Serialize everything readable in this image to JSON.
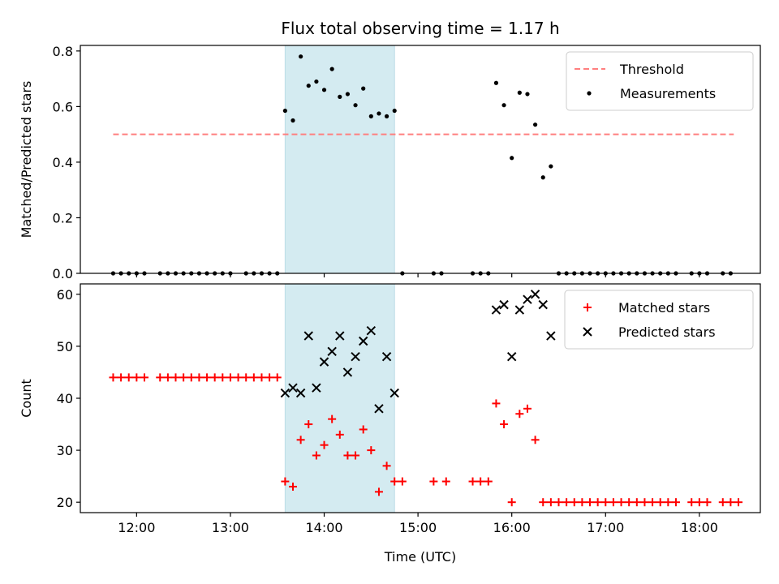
{
  "figure": {
    "title": "Flux total observing time = 1.17 h",
    "xlabel": "Time (UTC)"
  },
  "chart_data": [
    {
      "type": "scatter",
      "ylabel": "Matched/Predicted stars",
      "xlim": [
        "11:24",
        "18:39"
      ],
      "ylim": [
        0,
        0.82
      ],
      "y_ticks": [
        0.0,
        0.2,
        0.4,
        0.6,
        0.8
      ],
      "y_tick_labels": [
        "0.0",
        "0.2",
        "0.4",
        "0.6",
        "0.8"
      ],
      "legend_position": "top-right",
      "shaded_span": [
        "13:35",
        "14:45"
      ],
      "shade_color": "#d4ebf1",
      "threshold": {
        "name": "Threshold",
        "y": 0.5,
        "x_range": [
          "11:45",
          "18:22"
        ],
        "style": "dashed",
        "color": "#ff7f7f"
      },
      "series": [
        {
          "name": "Measurements",
          "marker": "dot",
          "color": "#000000",
          "points": [
            [
              "11:45",
              0
            ],
            [
              "11:50",
              0
            ],
            [
              "11:55",
              0
            ],
            [
              "12:00",
              0
            ],
            [
              "12:05",
              0
            ],
            [
              "12:15",
              0
            ],
            [
              "12:20",
              0
            ],
            [
              "12:25",
              0
            ],
            [
              "12:30",
              0
            ],
            [
              "12:35",
              0
            ],
            [
              "12:40",
              0
            ],
            [
              "12:45",
              0
            ],
            [
              "12:50",
              0
            ],
            [
              "12:55",
              0
            ],
            [
              "13:00",
              0
            ],
            [
              "13:10",
              0
            ],
            [
              "13:15",
              0
            ],
            [
              "13:20",
              0
            ],
            [
              "13:25",
              0
            ],
            [
              "13:30",
              0
            ],
            [
              "13:35",
              0.585
            ],
            [
              "13:40",
              0.55
            ],
            [
              "13:45",
              0.78
            ],
            [
              "13:50",
              0.675
            ],
            [
              "13:55",
              0.69
            ],
            [
              "14:00",
              0.66
            ],
            [
              "14:05",
              0.735
            ],
            [
              "14:10",
              0.635
            ],
            [
              "14:15",
              0.645
            ],
            [
              "14:20",
              0.605
            ],
            [
              "14:25",
              0.665
            ],
            [
              "14:30",
              0.565
            ],
            [
              "14:35",
              0.575
            ],
            [
              "14:40",
              0.565
            ],
            [
              "14:45",
              0.585
            ],
            [
              "14:50",
              0
            ],
            [
              "15:10",
              0
            ],
            [
              "15:15",
              0
            ],
            [
              "15:35",
              0
            ],
            [
              "15:40",
              0
            ],
            [
              "15:45",
              0
            ],
            [
              "15:50",
              0.685
            ],
            [
              "15:55",
              0.605
            ],
            [
              "16:00",
              0.415
            ],
            [
              "16:05",
              0.65
            ],
            [
              "16:10",
              0.645
            ],
            [
              "16:15",
              0.535
            ],
            [
              "16:20",
              0.345
            ],
            [
              "16:25",
              0.385
            ],
            [
              "16:30",
              0
            ],
            [
              "16:35",
              0
            ],
            [
              "16:40",
              0
            ],
            [
              "16:45",
              0
            ],
            [
              "16:50",
              0
            ],
            [
              "16:55",
              0
            ],
            [
              "17:00",
              0
            ],
            [
              "17:05",
              0
            ],
            [
              "17:10",
              0
            ],
            [
              "17:15",
              0
            ],
            [
              "17:20",
              0
            ],
            [
              "17:25",
              0
            ],
            [
              "17:30",
              0
            ],
            [
              "17:35",
              0
            ],
            [
              "17:40",
              0
            ],
            [
              "17:45",
              0
            ],
            [
              "17:55",
              0
            ],
            [
              "18:00",
              0
            ],
            [
              "18:05",
              0
            ],
            [
              "18:15",
              0
            ],
            [
              "18:20",
              0
            ]
          ]
        }
      ]
    },
    {
      "type": "scatter",
      "ylabel": "Count",
      "xlim": [
        "11:24",
        "18:39"
      ],
      "ylim": [
        18,
        62
      ],
      "y_ticks": [
        20,
        30,
        40,
        50,
        60
      ],
      "y_tick_labels": [
        "20",
        "30",
        "40",
        "50",
        "60"
      ],
      "x_ticks": [
        "12:00",
        "13:00",
        "14:00",
        "15:00",
        "16:00",
        "17:00",
        "18:00"
      ],
      "x_tick_labels": [
        "12:00",
        "13:00",
        "14:00",
        "15:00",
        "16:00",
        "17:00",
        "18:00"
      ],
      "legend_position": "top-right",
      "shaded_span": [
        "13:35",
        "14:45"
      ],
      "shade_color": "#d4ebf1",
      "series": [
        {
          "name": "Matched stars",
          "marker": "plus",
          "color": "#ff0000",
          "points": [
            [
              "11:45",
              44
            ],
            [
              "11:50",
              44
            ],
            [
              "11:55",
              44
            ],
            [
              "12:00",
              44
            ],
            [
              "12:05",
              44
            ],
            [
              "12:15",
              44
            ],
            [
              "12:20",
              44
            ],
            [
              "12:25",
              44
            ],
            [
              "12:30",
              44
            ],
            [
              "12:35",
              44
            ],
            [
              "12:40",
              44
            ],
            [
              "12:45",
              44
            ],
            [
              "12:50",
              44
            ],
            [
              "12:55",
              44
            ],
            [
              "13:00",
              44
            ],
            [
              "13:05",
              44
            ],
            [
              "13:10",
              44
            ],
            [
              "13:15",
              44
            ],
            [
              "13:20",
              44
            ],
            [
              "13:25",
              44
            ],
            [
              "13:30",
              44
            ],
            [
              "13:35",
              24
            ],
            [
              "13:40",
              23
            ],
            [
              "13:45",
              32
            ],
            [
              "13:50",
              35
            ],
            [
              "13:55",
              29
            ],
            [
              "14:00",
              31
            ],
            [
              "14:05",
              36
            ],
            [
              "14:10",
              33
            ],
            [
              "14:15",
              29
            ],
            [
              "14:20",
              29
            ],
            [
              "14:25",
              34
            ],
            [
              "14:30",
              30
            ],
            [
              "14:35",
              22
            ],
            [
              "14:40",
              27
            ],
            [
              "14:45",
              24
            ],
            [
              "14:50",
              24
            ],
            [
              "15:10",
              24
            ],
            [
              "15:18",
              24
            ],
            [
              "15:35",
              24
            ],
            [
              "15:40",
              24
            ],
            [
              "15:45",
              24
            ],
            [
              "15:50",
              39
            ],
            [
              "15:55",
              35
            ],
            [
              "16:00",
              20
            ],
            [
              "16:05",
              37
            ],
            [
              "16:10",
              38
            ],
            [
              "16:15",
              32
            ],
            [
              "16:20",
              20
            ],
            [
              "16:25",
              20
            ],
            [
              "16:30",
              20
            ],
            [
              "16:35",
              20
            ],
            [
              "16:40",
              20
            ],
            [
              "16:45",
              20
            ],
            [
              "16:50",
              20
            ],
            [
              "16:55",
              20
            ],
            [
              "17:00",
              20
            ],
            [
              "17:05",
              20
            ],
            [
              "17:10",
              20
            ],
            [
              "17:15",
              20
            ],
            [
              "17:20",
              20
            ],
            [
              "17:25",
              20
            ],
            [
              "17:30",
              20
            ],
            [
              "17:35",
              20
            ],
            [
              "17:40",
              20
            ],
            [
              "17:45",
              20
            ],
            [
              "17:55",
              20
            ],
            [
              "18:00",
              20
            ],
            [
              "18:05",
              20
            ],
            [
              "18:15",
              20
            ],
            [
              "18:20",
              20
            ],
            [
              "18:25",
              20
            ]
          ]
        },
        {
          "name": "Predicted stars",
          "marker": "x",
          "color": "#000000",
          "points": [
            [
              "13:35",
              41
            ],
            [
              "13:40",
              42
            ],
            [
              "13:45",
              41
            ],
            [
              "13:50",
              52
            ],
            [
              "13:55",
              42
            ],
            [
              "14:00",
              47
            ],
            [
              "14:05",
              49
            ],
            [
              "14:10",
              52
            ],
            [
              "14:15",
              45
            ],
            [
              "14:20",
              48
            ],
            [
              "14:25",
              51
            ],
            [
              "14:30",
              53
            ],
            [
              "14:35",
              38
            ],
            [
              "14:40",
              48
            ],
            [
              "14:45",
              41
            ],
            [
              "15:50",
              57
            ],
            [
              "15:55",
              58
            ],
            [
              "16:00",
              48
            ],
            [
              "16:05",
              57
            ],
            [
              "16:10",
              59
            ],
            [
              "16:15",
              60
            ],
            [
              "16:20",
              58
            ],
            [
              "16:25",
              52
            ]
          ]
        }
      ]
    }
  ]
}
